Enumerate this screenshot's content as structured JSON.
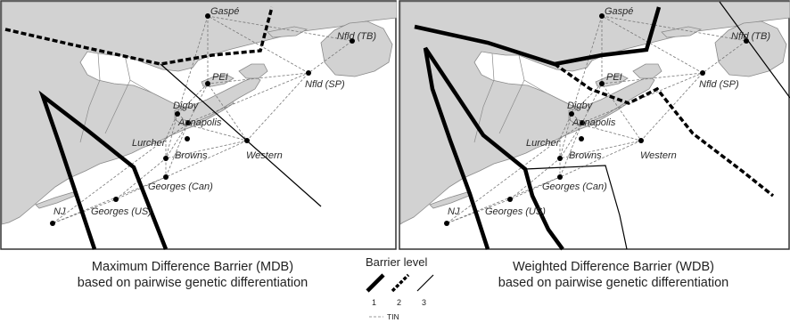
{
  "panels": [
    {
      "caption_line1": "Maximum Difference Barrier (MDB)",
      "caption_line2": "based on pairwise genetic differentiation"
    },
    {
      "caption_line1": "Weighted Difference Barrier (WDB)",
      "caption_line2": "based on pairwise genetic differentiation"
    }
  ],
  "sites": {
    "gaspe": "Gaspé",
    "nfld_tb": "Nfld (TB)",
    "nfld_sp": "Nfld (SP)",
    "pei": "PEI",
    "digby": "Digby",
    "annapolis": "Annapolis",
    "lurcher": "Lurcher",
    "browns": "Browns",
    "western": "Western",
    "georges_can": "Georges (Can)",
    "georges_us": "Georges (US)",
    "nj": "NJ"
  },
  "legend": {
    "title": "Barrier level",
    "levels": [
      "1",
      "2",
      "3"
    ],
    "tin_label": "TIN"
  },
  "colors": {
    "land": "#d2d2d2",
    "coast": "#8a8a8a",
    "tin": "#777777",
    "barrier": "#000000"
  }
}
